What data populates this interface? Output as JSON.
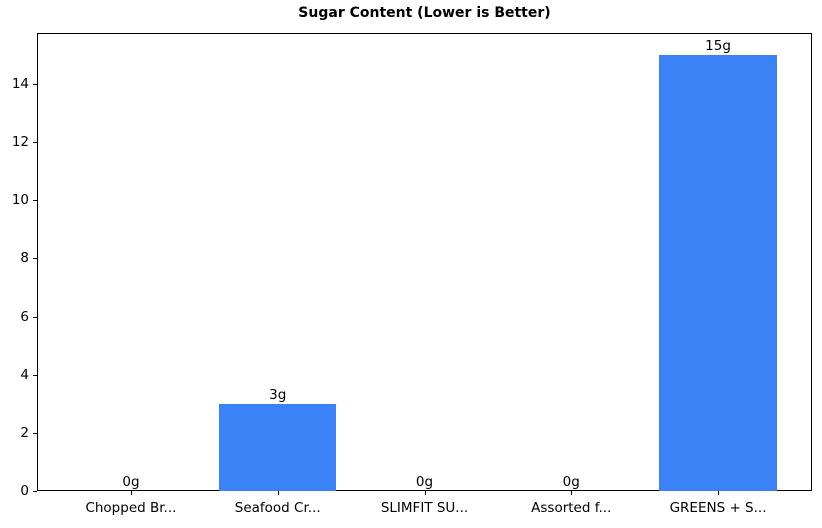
{
  "chart_data": {
    "type": "bar",
    "title": "Sugar Content (Lower is Better)",
    "categories": [
      "Chopped Br...",
      "Seafood Cr...",
      "SLIMFIT SU...",
      "Assorted f...",
      "GREENS + S..."
    ],
    "values": [
      0,
      3,
      0,
      0,
      15
    ],
    "value_labels": [
      "0g",
      "3g",
      "0g",
      "0g",
      "15g"
    ],
    "xlabel": "",
    "ylabel": "",
    "ylim": [
      0,
      15.75
    ],
    "yticks": [
      0,
      2,
      4,
      6,
      8,
      10,
      12,
      14
    ],
    "bar_color": "#3b82f6",
    "bar_width_frac": 0.8,
    "grid": false,
    "legend": false,
    "frame": true,
    "background_color": "#ffffff",
    "text_color": "#000000"
  }
}
